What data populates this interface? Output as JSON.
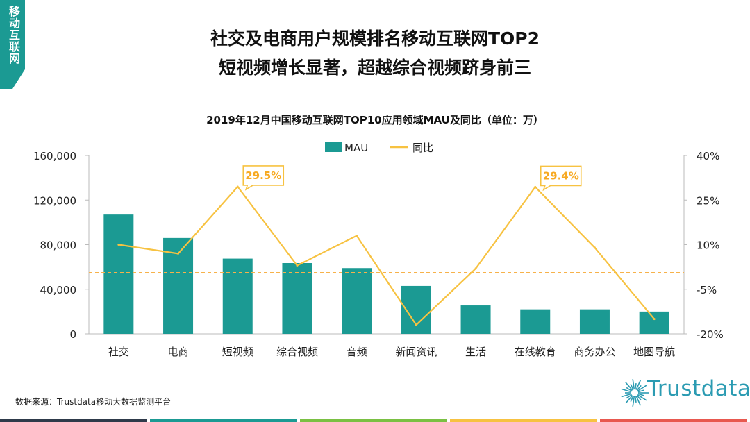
{
  "header": {
    "corner_label": "移动互联网",
    "headline_1": "社交及电商用户规模排名移动互联网TOP2",
    "headline_2": "短视频增长显著，超越综合视频跻身前三"
  },
  "chart_data": {
    "type": "bar",
    "title": "2019年12月中国移动互联网TOP10应用领域MAU及同比（单位：万）",
    "categories": [
      "社交",
      "电商",
      "短视频",
      "综合视频",
      "音频",
      "新闻资讯",
      "生活",
      "在线教育",
      "商务办公",
      "地图导航"
    ],
    "series": [
      {
        "name": "MAU",
        "type": "bar",
        "axis": "left",
        "color": "#1b9a93",
        "values": [
          107000,
          86000,
          67500,
          63500,
          59000,
          43000,
          25500,
          22000,
          22000,
          20000
        ]
      },
      {
        "name": "同比",
        "type": "line",
        "axis": "right",
        "color": "#f7c241",
        "values": [
          10.0,
          7.0,
          29.5,
          3.0,
          13.0,
          -17.0,
          2.0,
          29.4,
          9.0,
          -15.0
        ]
      }
    ],
    "left_axis": {
      "min": 0,
      "max": 160000,
      "ticks": [
        0,
        40000,
        80000,
        120000,
        160000
      ],
      "tick_labels": [
        "0",
        "40,000",
        "80,000",
        "120,000",
        "160,000"
      ]
    },
    "right_axis": {
      "min": -20,
      "max": 40,
      "ticks": [
        -20,
        -5,
        10,
        25,
        40
      ],
      "tick_labels": [
        "-20%",
        "-5%",
        "10%",
        "25%",
        "40%"
      ]
    },
    "reference_line": {
      "value": 55000,
      "axis": "left",
      "style": "dashed",
      "color": "#f7b24a"
    },
    "callouts": [
      {
        "category_index": 2,
        "label": "29.5%"
      },
      {
        "category_index": 7,
        "label": "29.4%"
      }
    ],
    "legend": {
      "position": "top-center"
    },
    "grid": false
  },
  "footer": {
    "source": "数据来源：Trustdata移动大数据监测平台",
    "logo_text": "Trustdata",
    "bar_colors": [
      "#2e3a4a",
      "#1b9a93",
      "#7ac043",
      "#f7c241",
      "#e8584f"
    ]
  }
}
